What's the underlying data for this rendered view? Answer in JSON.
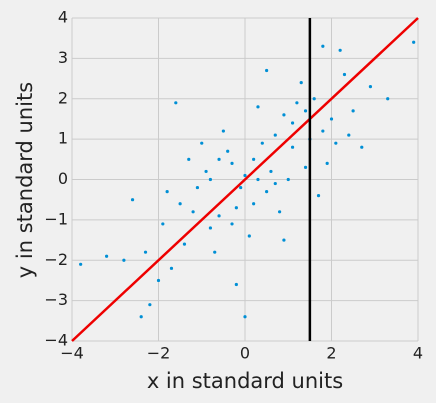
{
  "chart_data": {
    "type": "scatter",
    "xlabel": "x in standard units",
    "ylabel": "y in standard units",
    "xlim": [
      -4,
      4
    ],
    "ylim": [
      -4,
      4
    ],
    "xticks": [
      {
        "value": -4,
        "label": "−4"
      },
      {
        "value": -2,
        "label": "−2"
      },
      0,
      2,
      4
    ],
    "yticks": [
      {
        "value": -4,
        "label": "−4"
      },
      {
        "value": -3,
        "label": "−3"
      },
      {
        "value": -2,
        "label": "−2"
      },
      {
        "value": -1,
        "label": "−1"
      },
      0,
      1,
      2,
      3,
      4
    ],
    "grid": true,
    "color": "#008fd5",
    "x": [
      -2.3,
      -1.5,
      -0.8,
      0.2,
      1.1,
      0.5,
      -0.3,
      1.8,
      -1.1,
      0.9,
      2.1,
      -0.6,
      0.0,
      1.4,
      -1.9,
      0.7,
      -0.2,
      1.6,
      -1.3,
      0.4,
      2.5,
      -2.8,
      0.8,
      -0.5,
      1.2,
      -1.7,
      0.1,
      2.9,
      -0.9,
      1.0,
      -2.6,
      0.3,
      -1.4,
      1.9,
      -0.1,
      2.3,
      -3.2,
      0.6,
      -0.7,
      1.5,
      -2.0,
      3.3,
      -1.0,
      0.2,
      1.3,
      -3.8,
      0.9,
      2.2,
      -0.4,
      1.7,
      -1.6,
      0.5,
      -2.4,
      2.7,
      -0.2,
      1.1,
      3.9,
      -2.2,
      0.0,
      1.8,
      -0.8,
      0.7,
      -1.2,
      2.0,
      -0.3,
      1.4,
      0.3,
      -1.8,
      2.4,
      -0.6
    ],
    "y": [
      -1.8,
      -0.6,
      -1.2,
      0.5,
      0.8,
      -0.3,
      0.4,
      1.2,
      -0.2,
      1.6,
      0.9,
      -0.9,
      0.1,
      0.3,
      -1.1,
      1.1,
      -0.7,
      2.0,
      0.5,
      0.9,
      1.7,
      -2.0,
      -0.8,
      1.2,
      1.9,
      -2.2,
      -1.4,
      2.3,
      0.2,
      0.0,
      -0.5,
      1.8,
      -1.6,
      0.4,
      -0.2,
      2.6,
      -1.9,
      0.2,
      -1.8,
      1.0,
      -2.5,
      2.0,
      0.9,
      -0.6,
      2.4,
      -2.1,
      -1.5,
      3.2,
      0.7,
      -0.4,
      1.9,
      2.7,
      -3.4,
      0.8,
      -2.6,
      1.4,
      3.4,
      -3.1,
      -3.4,
      3.3,
      0.0,
      -0.1,
      -0.8,
      1.5,
      -1.1,
      1.7,
      0.0,
      -0.3,
      1.1,
      0.5
    ],
    "lines": [
      {
        "x": [
          -4,
          4
        ],
        "y": [
          -4,
          4
        ],
        "color": "#ee0000"
      },
      {
        "x": [
          1.5,
          1.5
        ],
        "y": [
          -4,
          4
        ],
        "color": "#000000"
      }
    ]
  }
}
